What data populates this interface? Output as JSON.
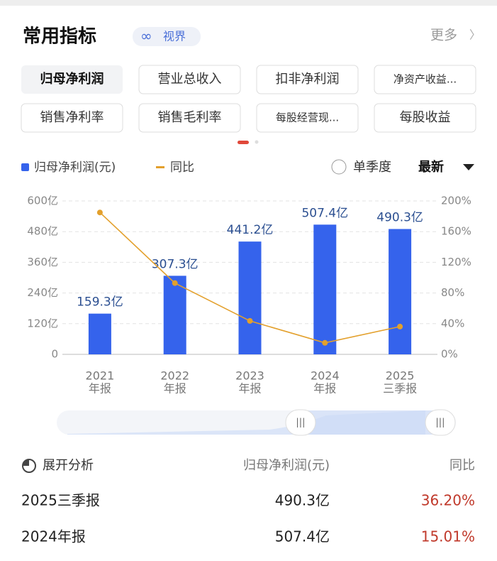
{
  "header": {
    "title": "常用指标",
    "badge": "视界",
    "more": "更多"
  },
  "tabs": [
    "归母净利润",
    "营业总收入",
    "扣非净利润",
    "净资产收益...",
    "销售净利率",
    "销售毛利率",
    "每股经营现...",
    "每股收益"
  ],
  "chart_data": {
    "type": "bar-line",
    "categories": [
      [
        "2021",
        "年报"
      ],
      [
        "2022",
        "年报"
      ],
      [
        "2023",
        "年报"
      ],
      [
        "2024",
        "年报"
      ],
      [
        "2025",
        "三季报"
      ]
    ],
    "series": [
      {
        "name": "归母净利润(元)",
        "type": "bar",
        "color": "#3563ec",
        "values": [
          159.3,
          307.3,
          441.2,
          507.4,
          490.3
        ],
        "value_labels": [
          "159.3亿",
          "307.3亿",
          "441.2亿",
          "507.4亿",
          "490.3亿"
        ]
      },
      {
        "name": "同比",
        "type": "line",
        "axis": "y2",
        "color": "#e3a02c",
        "values": [
          185,
          92.9,
          43.6,
          15.01,
          36.2
        ]
      }
    ],
    "ylim": [
      0,
      600
    ],
    "yticks": [
      0,
      {
        "value": 120,
        "label": "120亿"
      },
      {
        "value": 240,
        "label": "240亿"
      },
      {
        "value": 360,
        "label": "360亿"
      },
      {
        "value": 480,
        "label": "480亿"
      },
      {
        "value": 600,
        "label": "600亿"
      }
    ],
    "y2lim": [
      0,
      200
    ],
    "y2ticks": [
      {
        "value": 0,
        "label": "0%"
      },
      {
        "value": 40,
        "label": "40%"
      },
      {
        "value": 80,
        "label": "80%"
      },
      {
        "value": 120,
        "label": "120%"
      },
      {
        "value": 160,
        "label": "160%"
      },
      {
        "value": 200,
        "label": "200%"
      }
    ],
    "grid": true
  },
  "controls": {
    "quarter": "单季度",
    "sort": "最新"
  },
  "table": {
    "header": [
      "展开分析",
      "归母净利润(元)",
      "同比"
    ],
    "rows": [
      [
        "2025三季报",
        "490.3亿",
        "36.20%"
      ],
      [
        "2024年报",
        "507.4亿",
        "15.01%"
      ]
    ]
  }
}
